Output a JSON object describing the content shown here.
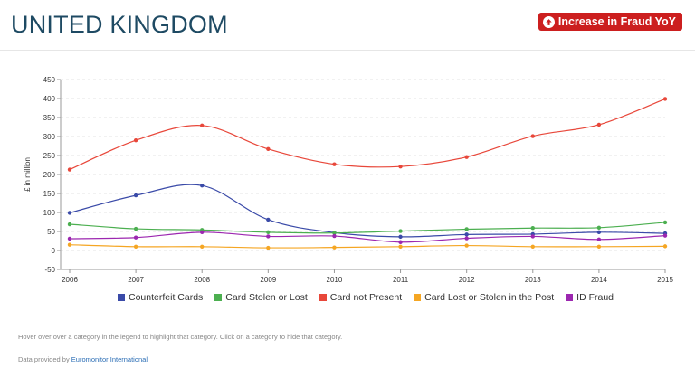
{
  "header": {
    "title": "UNITED KINGDOM",
    "badge_label": "Increase in Fraud YoY",
    "badge_icon": "arrow-up-circle-icon",
    "badge_color": "#cc1f1f"
  },
  "chart_data": {
    "type": "line",
    "title": "",
    "xlabel": "",
    "ylabel": "£ in million",
    "x": [
      "2006",
      "2007",
      "2008",
      "2009",
      "2010",
      "2011",
      "2012",
      "2013",
      "2014",
      "2015"
    ],
    "ylim": [
      -50,
      450
    ],
    "yticks": [
      "450",
      "400",
      "350",
      "300",
      "250",
      "200",
      "150",
      "100",
      "50",
      "0",
      "-50"
    ],
    "grid": true,
    "legend_position": "bottom",
    "series": [
      {
        "name": "Counterfeit Cards",
        "color": "#3a4aa8",
        "values": [
          99,
          145,
          171,
          81,
          47,
          36,
          42,
          43,
          48,
          45
        ]
      },
      {
        "name": "Card Stolen or Lost",
        "color": "#4caf50",
        "values": [
          69,
          57,
          54,
          48,
          46,
          51,
          56,
          59,
          60,
          74
        ]
      },
      {
        "name": "Card not Present",
        "color": "#e8473a",
        "values": [
          213,
          290,
          329,
          267,
          227,
          221,
          246,
          301,
          331,
          399
        ]
      },
      {
        "name": "Card Lost or Stolen in the Post",
        "color": "#f5a623",
        "values": [
          15,
          10,
          10,
          7,
          8,
          10,
          13,
          10,
          10,
          11
        ]
      },
      {
        "name": "ID Fraud",
        "color": "#9c27b0",
        "values": [
          31,
          34,
          48,
          37,
          38,
          22,
          32,
          37,
          29,
          39
        ]
      }
    ]
  },
  "footer": {
    "hint": "Hover over over a category in the legend to highlight that category. Click on a category to hide that category.",
    "source_prefix": "Data provided by ",
    "source_link": "Euromonitor International"
  }
}
